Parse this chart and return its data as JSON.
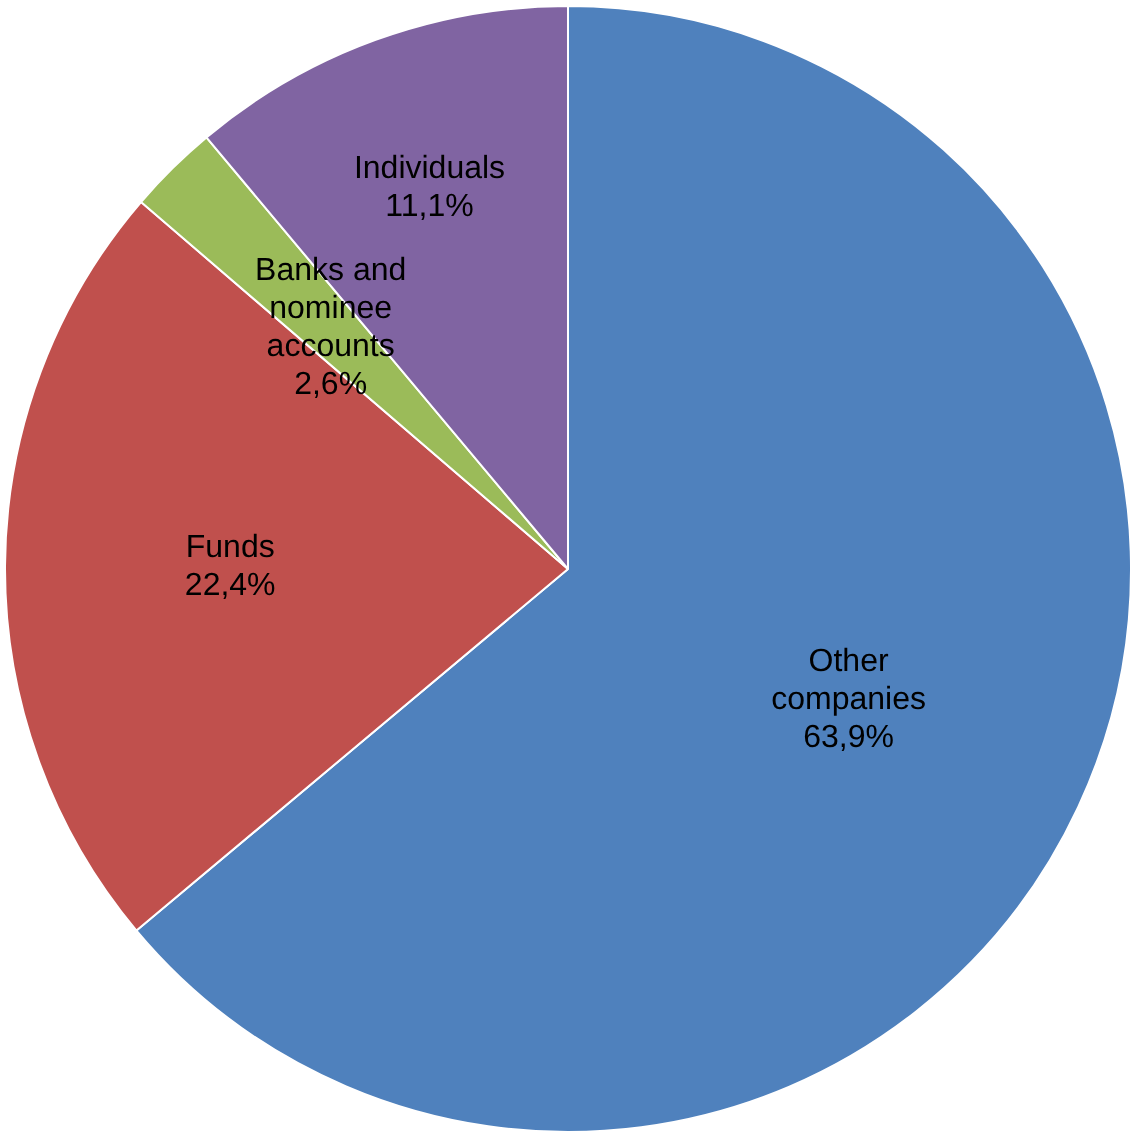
{
  "chart_data": {
    "type": "pie",
    "categories": [
      "Other companies",
      "Funds",
      "Banks and nominee accounts",
      "Individuals"
    ],
    "values": [
      63.9,
      22.4,
      2.6,
      11.1
    ],
    "colors": [
      "#4f81bd",
      "#c0504d",
      "#9bbb59",
      "#8064a2"
    ],
    "value_labels": [
      "63,9%",
      "22,4%",
      "2,6%",
      "11,1%"
    ],
    "legend": false
  }
}
